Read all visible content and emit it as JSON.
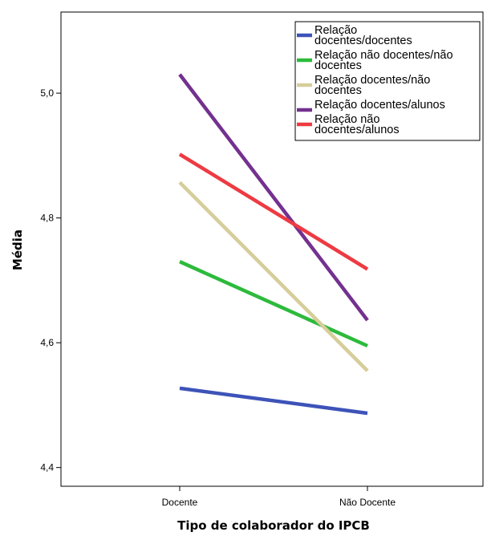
{
  "chart_data": {
    "type": "line",
    "title": "",
    "xlabel": "Tipo de colaborador do IPCB",
    "ylabel": "Média",
    "categories": [
      "Docente",
      "Não Docente"
    ],
    "ylim": [
      4.37,
      5.13
    ],
    "yticks": [
      4.4,
      4.6,
      4.8,
      5.0
    ],
    "ytick_labels": [
      "4,4",
      "4,6",
      "4,8",
      "5,0"
    ],
    "grid": false,
    "legend_position": "top-right",
    "series": [
      {
        "name": "Relação docentes/docentes",
        "legend_lines": [
          "Relação",
          "docentes/docentes"
        ],
        "color": "#3d53b8",
        "values": [
          4.527,
          4.487
        ]
      },
      {
        "name": "Relação não docentes/não docentes",
        "legend_lines": [
          "Relação não docentes/não",
          "docentes"
        ],
        "color": "#2dba3c",
        "values": [
          4.73,
          4.595
        ]
      },
      {
        "name": "Relação docentes/não docentes",
        "legend_lines": [
          "Relação docentes/não",
          "docentes"
        ],
        "color": "#d6cd9a",
        "values": [
          4.857,
          4.555
        ]
      },
      {
        "name": "Relação docentes/alunos",
        "legend_lines": [
          "Relação docentes/alunos"
        ],
        "color": "#73318f",
        "values": [
          5.03,
          4.636
        ]
      },
      {
        "name": "Relação não docentes/alunos",
        "legend_lines": [
          "Relação não",
          "docentes/alunos"
        ],
        "color": "#ee3a42",
        "values": [
          4.902,
          4.718
        ]
      }
    ]
  }
}
